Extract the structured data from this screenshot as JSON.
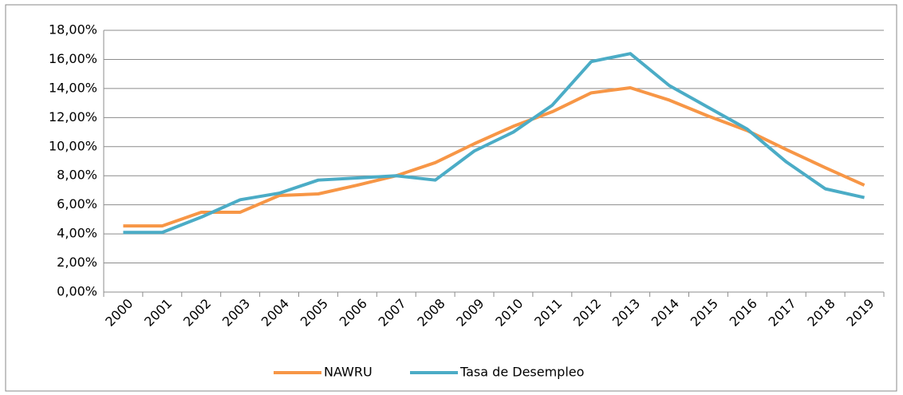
{
  "chart_data": {
    "type": "line",
    "categories": [
      "2000",
      "2001",
      "2002",
      "2003",
      "2004",
      "2005",
      "2006",
      "2007",
      "2008",
      "2009",
      "2010",
      "2011",
      "2012",
      "2013",
      "2014",
      "2015",
      "2016",
      "2017",
      "2018",
      "2019"
    ],
    "series": [
      {
        "name": "NAWRU",
        "color": "#f79646",
        "values": [
          4.55,
          4.55,
          5.49,
          5.49,
          6.64,
          6.75,
          7.35,
          8.0,
          8.9,
          10.2,
          11.4,
          12.4,
          13.7,
          14.05,
          13.2,
          12.1,
          11.1,
          9.8,
          8.55,
          7.35
        ]
      },
      {
        "name": "Tasa de Desempleo",
        "color": "#4bacc6",
        "values": [
          4.1,
          4.1,
          5.15,
          6.35,
          6.8,
          7.7,
          7.85,
          8.0,
          7.7,
          9.7,
          11.0,
          12.85,
          15.85,
          16.4,
          14.2,
          12.7,
          11.2,
          8.95,
          7.1,
          6.5
        ]
      }
    ],
    "ylim": [
      0,
      18
    ],
    "yticks": [
      {
        "value": 0,
        "label": "0,00%"
      },
      {
        "value": 2,
        "label": "2,00%"
      },
      {
        "value": 4,
        "label": "4,00%"
      },
      {
        "value": 6,
        "label": "6,00%"
      },
      {
        "value": 8,
        "label": "8,00%"
      },
      {
        "value": 10,
        "label": "10,00%"
      },
      {
        "value": 12,
        "label": "12,00%"
      },
      {
        "value": 14,
        "label": "14,00%"
      },
      {
        "value": 16,
        "label": "16,00%"
      },
      {
        "value": 18,
        "label": "18,00%"
      }
    ],
    "grid": true
  }
}
